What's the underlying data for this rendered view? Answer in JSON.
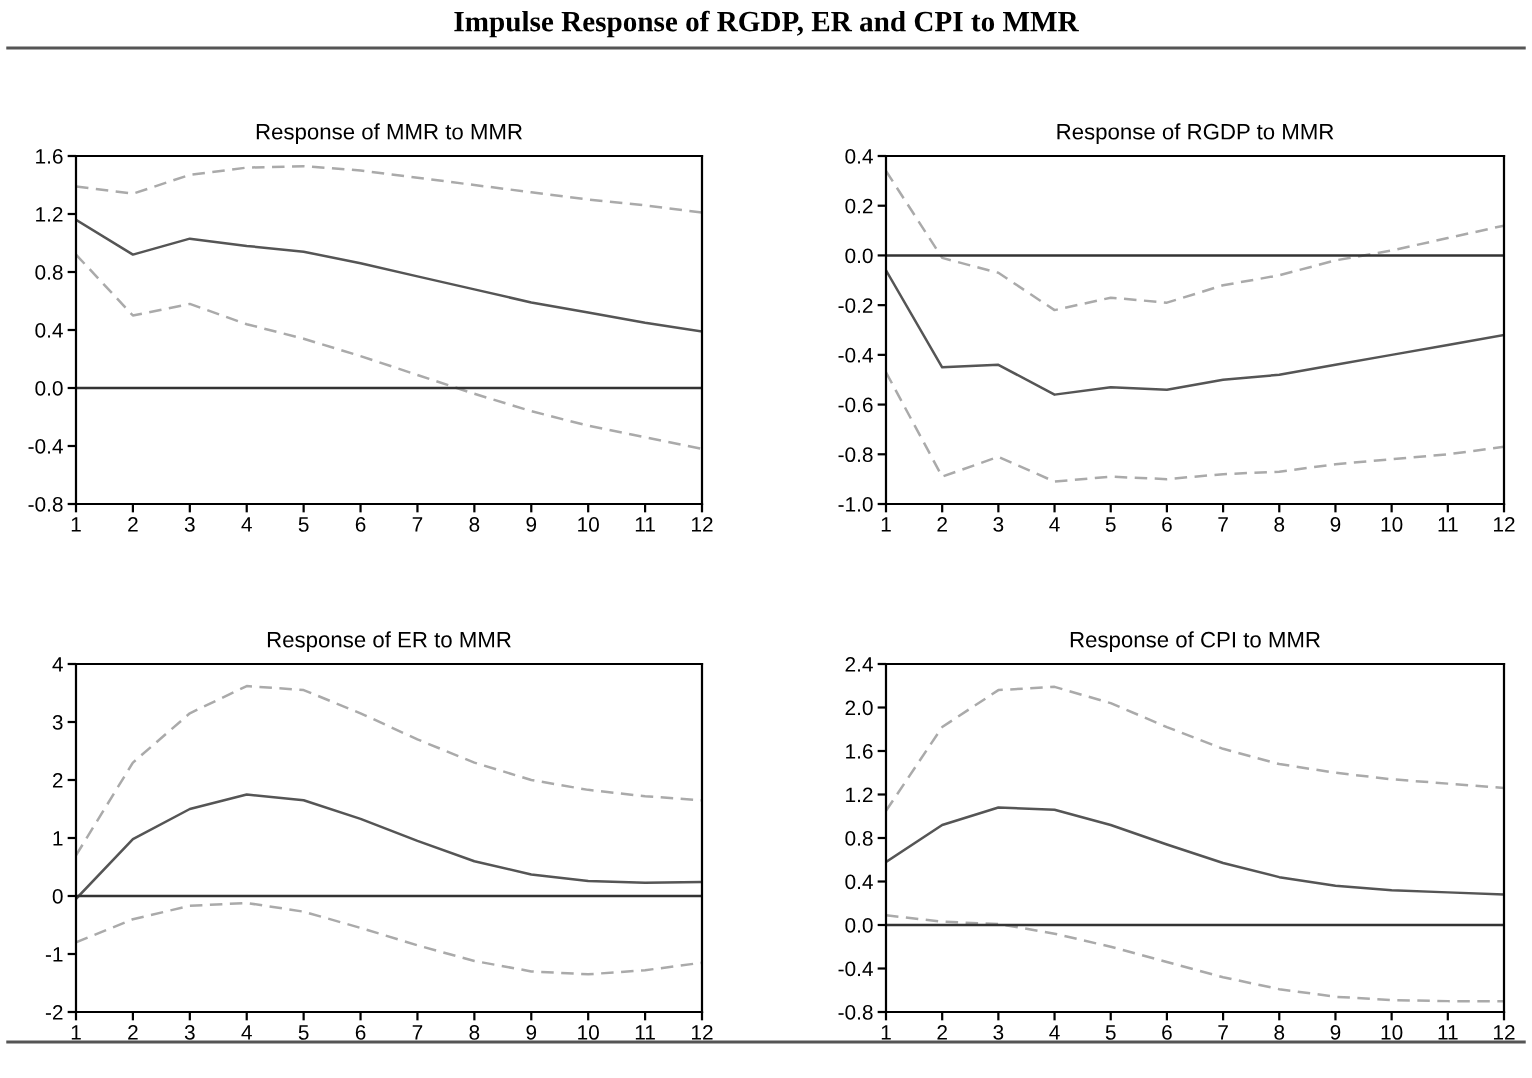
{
  "chart_data": [
    {
      "type": "other",
      "title": "Impulse Response of RGDP, ER and CPI to MMR"
    },
    {
      "type": "line",
      "title": "Response of MMR to MMR",
      "x": [
        1,
        2,
        3,
        4,
        5,
        6,
        7,
        8,
        9,
        10,
        11,
        12
      ],
      "xlim": [
        1,
        12
      ],
      "xticks": [
        1,
        2,
        3,
        4,
        5,
        6,
        7,
        8,
        9,
        10,
        11,
        12
      ],
      "ylim": [
        -0.8,
        1.6
      ],
      "yticks": [
        {
          "value": -0.8,
          "label": "-0.8"
        },
        {
          "value": -0.4,
          "label": "-0.4"
        },
        {
          "value": 0,
          "label": "0.0"
        },
        {
          "value": 0.4,
          "label": "0.4"
        },
        {
          "value": 0.8,
          "label": "0.8"
        },
        {
          "value": 1.2,
          "label": "1.2"
        },
        {
          "value": 1.6,
          "label": "1.6"
        }
      ],
      "grid": false,
      "legend": false,
      "ref_lines": [
        {
          "axis": "y",
          "value": 0,
          "color": "#333333",
          "line_style": "solid"
        }
      ],
      "series": [
        {
          "color": "#555555",
          "line_style": "solid",
          "values": [
            1.16,
            0.92,
            1.03,
            0.98,
            0.94,
            0.86,
            0.77,
            0.68,
            0.59,
            0.52,
            0.45,
            0.39
          ]
        },
        {
          "color": "#aaaaaa",
          "line_style": "dashed",
          "values": [
            1.39,
            1.34,
            1.47,
            1.52,
            1.53,
            1.5,
            1.45,
            1.4,
            1.35,
            1.3,
            1.26,
            1.21
          ]
        },
        {
          "color": "#aaaaaa",
          "line_style": "dashed",
          "values": [
            0.92,
            0.5,
            0.58,
            0.44,
            0.34,
            0.22,
            0.09,
            -0.04,
            -0.16,
            -0.26,
            -0.34,
            -0.42
          ]
        }
      ]
    },
    {
      "type": "line",
      "title": "Response of RGDP to MMR",
      "x": [
        1,
        2,
        3,
        4,
        5,
        6,
        7,
        8,
        9,
        10,
        11,
        12
      ],
      "xlim": [
        1,
        12
      ],
      "xticks": [
        1,
        2,
        3,
        4,
        5,
        6,
        7,
        8,
        9,
        10,
        11,
        12
      ],
      "ylim": [
        -1.0,
        0.4
      ],
      "yticks": [
        {
          "value": -1.0,
          "label": "-1.0"
        },
        {
          "value": -0.8,
          "label": "-0.8"
        },
        {
          "value": -0.6,
          "label": "-0.6"
        },
        {
          "value": -0.4,
          "label": "-0.4"
        },
        {
          "value": -0.2,
          "label": "-0.2"
        },
        {
          "value": 0,
          "label": "0.0"
        },
        {
          "value": 0.2,
          "label": "0.2"
        },
        {
          "value": 0.4,
          "label": "0.4"
        }
      ],
      "grid": false,
      "legend": false,
      "ref_lines": [
        {
          "axis": "y",
          "value": 0,
          "color": "#333333",
          "line_style": "solid"
        }
      ],
      "series": [
        {
          "color": "#555555",
          "line_style": "solid",
          "values": [
            -0.06,
            -0.45,
            -0.44,
            -0.56,
            -0.53,
            -0.54,
            -0.5,
            -0.48,
            -0.44,
            -0.4,
            -0.36,
            -0.32
          ]
        },
        {
          "color": "#aaaaaa",
          "line_style": "dashed",
          "values": [
            0.34,
            -0.01,
            -0.07,
            -0.22,
            -0.17,
            -0.19,
            -0.12,
            -0.08,
            -0.02,
            0.02,
            0.07,
            0.12
          ]
        },
        {
          "color": "#aaaaaa",
          "line_style": "dashed",
          "values": [
            -0.47,
            -0.89,
            -0.81,
            -0.91,
            -0.89,
            -0.9,
            -0.88,
            -0.87,
            -0.84,
            -0.82,
            -0.8,
            -0.77
          ]
        }
      ]
    },
    {
      "type": "line",
      "title": "Response of ER to MMR",
      "x": [
        1,
        2,
        3,
        4,
        5,
        6,
        7,
        8,
        9,
        10,
        11,
        12
      ],
      "xlim": [
        1,
        12
      ],
      "xticks": [
        1,
        2,
        3,
        4,
        5,
        6,
        7,
        8,
        9,
        10,
        11,
        12
      ],
      "ylim": [
        -2,
        4
      ],
      "yticks": [
        -2,
        -1,
        0,
        1,
        2,
        3,
        4
      ],
      "grid": false,
      "legend": false,
      "ref_lines": [
        {
          "axis": "y",
          "value": 0,
          "color": "#333333",
          "line_style": "solid"
        }
      ],
      "series": [
        {
          "color": "#555555",
          "line_style": "solid",
          "values": [
            -0.05,
            0.98,
            1.5,
            1.75,
            1.65,
            1.33,
            0.95,
            0.6,
            0.37,
            0.26,
            0.23,
            0.24
          ]
        },
        {
          "color": "#aaaaaa",
          "line_style": "dashed",
          "values": [
            0.7,
            2.3,
            3.15,
            3.62,
            3.55,
            3.15,
            2.7,
            2.3,
            2.0,
            1.83,
            1.72,
            1.65
          ]
        },
        {
          "color": "#aaaaaa",
          "line_style": "dashed",
          "values": [
            -0.8,
            -0.4,
            -0.17,
            -0.12,
            -0.27,
            -0.55,
            -0.85,
            -1.12,
            -1.3,
            -1.35,
            -1.28,
            -1.15
          ]
        }
      ]
    },
    {
      "type": "line",
      "title": "Response of CPI to MMR",
      "x": [
        1,
        2,
        3,
        4,
        5,
        6,
        7,
        8,
        9,
        10,
        11,
        12
      ],
      "xlim": [
        1,
        12
      ],
      "xticks": [
        1,
        2,
        3,
        4,
        5,
        6,
        7,
        8,
        9,
        10,
        11,
        12
      ],
      "ylim": [
        -0.8,
        2.4
      ],
      "yticks": [
        {
          "value": -0.8,
          "label": "-0.8"
        },
        {
          "value": -0.4,
          "label": "-0.4"
        },
        {
          "value": 0,
          "label": "0.0"
        },
        {
          "value": 0.4,
          "label": "0.4"
        },
        {
          "value": 0.8,
          "label": "0.8"
        },
        {
          "value": 1.2,
          "label": "1.2"
        },
        {
          "value": 1.6,
          "label": "1.6"
        },
        {
          "value": 2.0,
          "label": "2.0"
        },
        {
          "value": 2.4,
          "label": "2.4"
        }
      ],
      "grid": false,
      "legend": false,
      "ref_lines": [
        {
          "axis": "y",
          "value": 0,
          "color": "#333333",
          "line_style": "solid"
        }
      ],
      "series": [
        {
          "color": "#555555",
          "line_style": "solid",
          "values": [
            0.58,
            0.92,
            1.08,
            1.06,
            0.92,
            0.74,
            0.57,
            0.44,
            0.36,
            0.32,
            0.3,
            0.28
          ]
        },
        {
          "color": "#aaaaaa",
          "line_style": "dashed",
          "values": [
            1.05,
            1.82,
            2.16,
            2.19,
            2.04,
            1.82,
            1.62,
            1.48,
            1.4,
            1.34,
            1.3,
            1.26
          ]
        },
        {
          "color": "#aaaaaa",
          "line_style": "dashed",
          "values": [
            0.09,
            0.03,
            0.01,
            -0.08,
            -0.2,
            -0.34,
            -0.48,
            -0.59,
            -0.66,
            -0.69,
            -0.7,
            -0.7
          ]
        }
      ]
    }
  ]
}
